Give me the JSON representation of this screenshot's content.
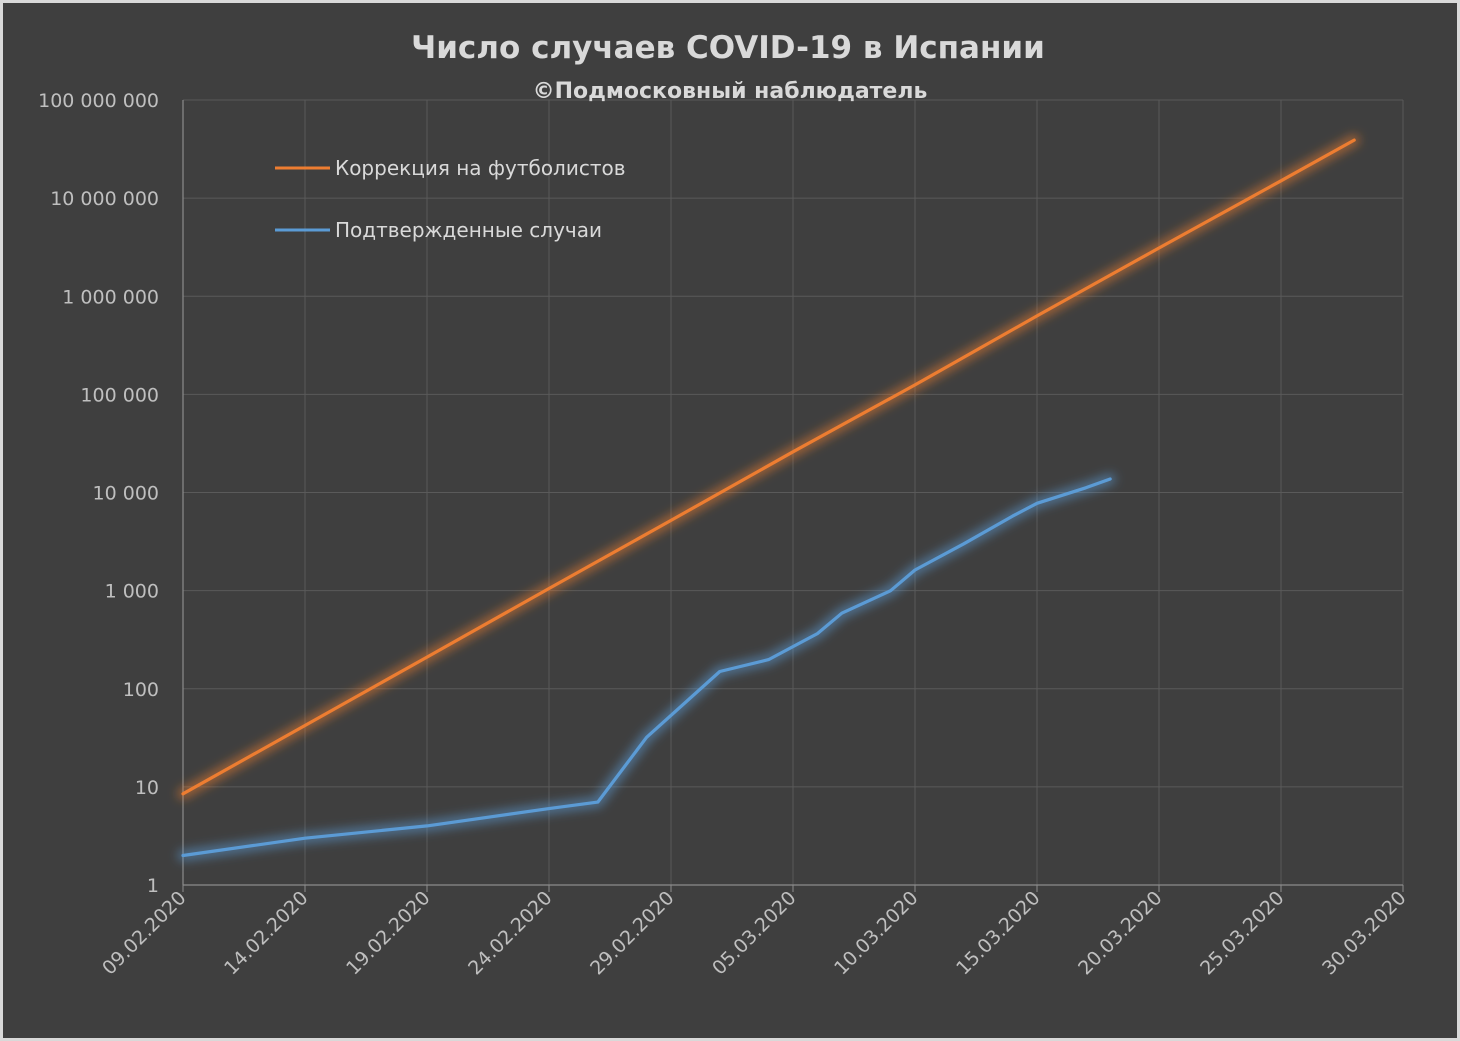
{
  "chart_data": {
    "type": "line",
    "title": "Число случаев COVID-19 в Испании",
    "subtitle": "©Подмосковный наблюдатель",
    "xlabel": "",
    "ylabel": "",
    "y_scale": "log",
    "ylim": [
      1,
      100000000
    ],
    "xlim": [
      "09.02.2020",
      "30.03.2020"
    ],
    "y_ticks": [
      {
        "value": 1,
        "label": "1"
      },
      {
        "value": 10,
        "label": "10"
      },
      {
        "value": 100,
        "label": "100"
      },
      {
        "value": 1000,
        "label": "1 000"
      },
      {
        "value": 10000,
        "label": "10 000"
      },
      {
        "value": 100000,
        "label": "100 000"
      },
      {
        "value": 1000000,
        "label": "1 000 000"
      },
      {
        "value": 10000000,
        "label": "10 000 000"
      },
      {
        "value": 100000000,
        "label": "100 000 000"
      }
    ],
    "x_ticks": [
      "09.02.2020",
      "14.02.2020",
      "19.02.2020",
      "24.02.2020",
      "29.02.2020",
      "05.03.2020",
      "10.03.2020",
      "15.03.2020",
      "20.03.2020",
      "25.03.2020",
      "30.03.2020"
    ],
    "grid": true,
    "legend_position": "top-left",
    "series": [
      {
        "name": "Коррекция на футболистов",
        "color": "#ed7d31",
        "points": [
          {
            "x": "09.02.2020",
            "y": 8.5
          },
          {
            "x": "19.02.2020",
            "y": 210
          },
          {
            "x": "24.02.2020",
            "y": 1050
          },
          {
            "x": "29.02.2020",
            "y": 5200
          },
          {
            "x": "05.03.2020",
            "y": 26000
          },
          {
            "x": "10.03.2020",
            "y": 125000
          },
          {
            "x": "15.03.2020",
            "y": 630000
          },
          {
            "x": "20.03.2020",
            "y": 3100000
          },
          {
            "x": "25.03.2020",
            "y": 15000000
          },
          {
            "x": "28.03.2020",
            "y": 39000000
          }
        ]
      },
      {
        "name": "Подтвержденные случаи",
        "color": "#5b9bd5",
        "points": [
          {
            "x": "09.02.2020",
            "y": 2
          },
          {
            "x": "14.02.2020",
            "y": 3
          },
          {
            "x": "19.02.2020",
            "y": 4
          },
          {
            "x": "24.02.2020",
            "y": 6
          },
          {
            "x": "26.02.2020",
            "y": 7
          },
          {
            "x": "28.02.2020",
            "y": 32
          },
          {
            "x": "02.03.2020",
            "y": 150
          },
          {
            "x": "04.03.2020",
            "y": 198
          },
          {
            "x": "06.03.2020",
            "y": 365
          },
          {
            "x": "07.03.2020",
            "y": 589
          },
          {
            "x": "09.03.2020",
            "y": 999
          },
          {
            "x": "10.03.2020",
            "y": 1622
          },
          {
            "x": "12.03.2020",
            "y": 3004
          },
          {
            "x": "14.03.2020",
            "y": 5753
          },
          {
            "x": "15.03.2020",
            "y": 7753
          },
          {
            "x": "17.03.2020",
            "y": 11178
          },
          {
            "x": "18.03.2020",
            "y": 13716
          }
        ]
      }
    ]
  }
}
